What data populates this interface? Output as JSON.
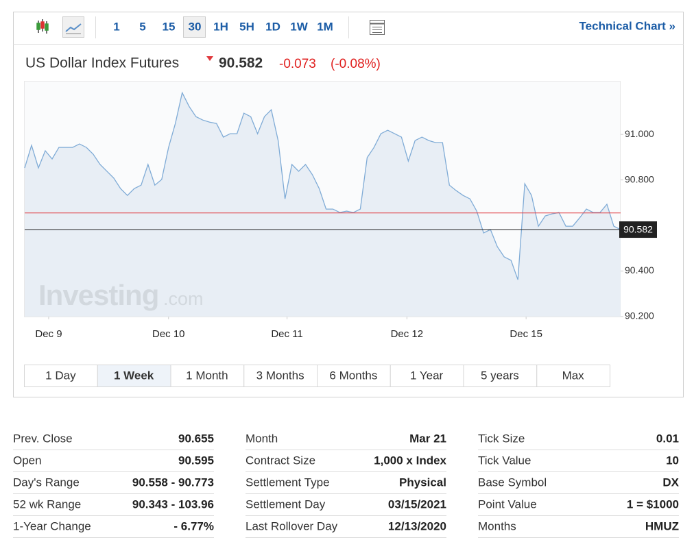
{
  "toolbar": {
    "intervals": [
      "1",
      "5",
      "15",
      "30",
      "1H",
      "5H",
      "1D",
      "1W",
      "1M"
    ],
    "active_interval": 3,
    "technical_chart": "Technical Chart »"
  },
  "header": {
    "title": "US Dollar Index Futures",
    "price": "90.582",
    "change": "-0.073",
    "change_percent": "(-0.08%)"
  },
  "chart_data": {
    "type": "area",
    "color": "#7fabd6",
    "fill_color": "#e3ebf3",
    "values": [
      90.853,
      90.952,
      90.853,
      90.928,
      90.892,
      90.943,
      90.943,
      90.943,
      90.958,
      90.943,
      90.913,
      90.868,
      90.838,
      90.808,
      90.762,
      90.732,
      90.762,
      90.777,
      90.868,
      90.777,
      90.802,
      90.943,
      91.048,
      91.183,
      91.123,
      91.078,
      91.063,
      91.054,
      91.048,
      90.988,
      91.003,
      91.003,
      91.093,
      91.078,
      91.003,
      91.078,
      91.108,
      90.973,
      90.717,
      90.868,
      90.838,
      90.868,
      90.823,
      90.762,
      90.672,
      90.672,
      90.657,
      90.663,
      90.657,
      90.672,
      90.898,
      90.943,
      91.003,
      91.018,
      91.003,
      90.988,
      90.883,
      90.973,
      90.988,
      90.973,
      90.964,
      90.964,
      90.777,
      90.753,
      90.732,
      90.717,
      90.663,
      90.567,
      90.582,
      90.507,
      90.462,
      90.447,
      90.362,
      90.783,
      90.732,
      90.597,
      90.642,
      90.651,
      90.657,
      90.597,
      90.597,
      90.633,
      90.672,
      90.657,
      90.657,
      90.693,
      90.597,
      90.582
    ],
    "xlim": [
      0,
      87
    ],
    "xticks": [
      {
        "value": 3.5,
        "label": "Dec 9"
      },
      {
        "value": 21,
        "label": "Dec 10"
      },
      {
        "value": 38.3,
        "label": "Dec 11"
      },
      {
        "value": 55.8,
        "label": "Dec 12"
      },
      {
        "value": 73.2,
        "label": "Dec 15"
      }
    ],
    "ylim": [
      90.2,
      91.235
    ],
    "yticks": [
      {
        "value": 90.2,
        "label": "90.200"
      },
      {
        "value": 90.4,
        "label": "90.400"
      },
      {
        "value": 90.8,
        "label": "90.800"
      },
      {
        "value": 91,
        "label": "91.000"
      }
    ],
    "grid": false,
    "prev_close_line": 90.655,
    "prev_close_color": "#e0393e",
    "last_value": 90.582,
    "last_value_color": "#222222",
    "watermark_brand": "Investing",
    "watermark_suffix": ".com"
  },
  "ranges": {
    "items": [
      "1 Day",
      "1 Week",
      "1 Month",
      "3 Months",
      "6 Months",
      "1 Year",
      "5 years",
      "Max"
    ],
    "active": 1
  },
  "stats": {
    "columns": [
      [
        [
          "Prev. Close",
          "90.655"
        ],
        [
          "Open",
          "90.595"
        ],
        [
          "Day's Range",
          "90.558 - 90.773"
        ],
        [
          "52 wk Range",
          "90.343 - 103.96"
        ],
        [
          "1-Year Change",
          "- 6.77%"
        ]
      ],
      [
        [
          "Month",
          "Mar 21"
        ],
        [
          "Contract Size",
          "1,000 x Index"
        ],
        [
          "Settlement Type",
          "Physical"
        ],
        [
          "Settlement Day",
          "03/15/2021"
        ],
        [
          "Last Rollover Day",
          "12/13/2020"
        ]
      ],
      [
        [
          "Tick Size",
          "0.01"
        ],
        [
          "Tick Value",
          "10"
        ],
        [
          "Base Symbol",
          "DX"
        ],
        [
          "Point Value",
          "1 = $1000"
        ],
        [
          "Months",
          "HMUZ"
        ]
      ]
    ]
  }
}
